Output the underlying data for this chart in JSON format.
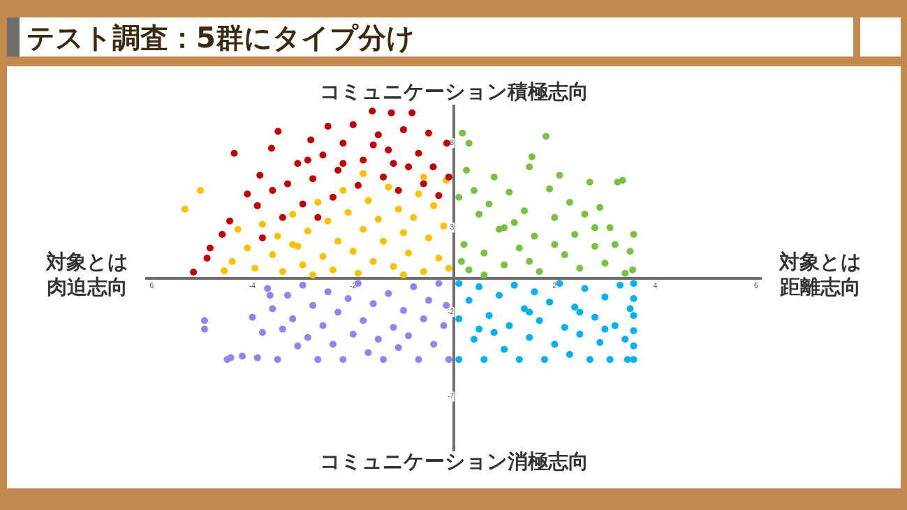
{
  "chart_data": {
    "type": "scatter",
    "title": "テスト調査：5群にタイプ分け",
    "annotations": [
      "コミュニケーション積極志向",
      "コミュニケーション消極志向",
      "対象とは肉迫志向",
      "対象とは距離志向"
    ],
    "xlim": [
      -6.1,
      6.1
    ],
    "ylim": [
      -10.2,
      10.2
    ],
    "xticks": [
      {
        "value": -6,
        "label": "6"
      },
      -4,
      -2,
      2,
      4,
      6
    ],
    "yticks": [
      8,
      3,
      -2,
      -7
    ],
    "grid": false,
    "legend": false,
    "marker": "circle",
    "series": [
      {
        "color": "#c00000",
        "x": [
          -5.17,
          -4.84,
          -4.6,
          -4.45,
          -4.36,
          -4.1,
          -3.9,
          -3.85,
          -3.62,
          -3.49,
          -3.4,
          -3.3,
          -3.1,
          -3.0,
          -2.84,
          -2.8,
          -2.6,
          -2.5,
          -2.4,
          -2.3,
          -2.2,
          -2.0,
          -1.9,
          -1.8,
          -1.62,
          -1.5,
          -1.4,
          -1.3,
          -1.24,
          -1.1,
          -1.0,
          -0.9,
          -0.83,
          -0.7,
          -0.6,
          -0.5,
          -0.41,
          -0.3,
          -0.14,
          -0.1,
          -3.6,
          -2.9,
          -2.2,
          -1.6,
          -1.2,
          -2.7,
          -3.8,
          -4.9
        ],
        "values": [
          0.37,
          1.8,
          2.6,
          3.4,
          7.4,
          5.0,
          4.3,
          6.1,
          7.7,
          8.7,
          3.6,
          5.6,
          6.8,
          4.4,
          8.2,
          5.9,
          7.3,
          9.0,
          4.8,
          6.4,
          8.0,
          9.1,
          5.5,
          7.0,
          9.9,
          8.5,
          6.0,
          7.6,
          9.8,
          5.2,
          8.8,
          6.6,
          9.8,
          7.4,
          5.6,
          8.6,
          6.6,
          4.9,
          8.0,
          6.0,
          5.2,
          7.0,
          6.8,
          7.9,
          6.8,
          3.6,
          2.4,
          1.2
        ]
      },
      {
        "color": "#ffc000",
        "x": [
          -5.34,
          -5.03,
          -4.56,
          -4.4,
          -4.29,
          -4.1,
          -3.95,
          -3.8,
          -3.6,
          -3.5,
          -3.4,
          -3.2,
          -3.1,
          -3.0,
          -2.9,
          -2.7,
          -2.6,
          -2.5,
          -2.4,
          -2.3,
          -2.2,
          -2.1,
          -2.0,
          -1.9,
          -1.8,
          -1.7,
          -1.6,
          -1.5,
          -1.4,
          -1.3,
          -1.2,
          -1.1,
          -1.0,
          -0.9,
          -0.8,
          -0.7,
          -0.6,
          -0.5,
          -0.4,
          -0.3,
          -0.2,
          -0.1,
          -0.15,
          -0.6,
          -1.8,
          -3.2,
          -2.8,
          -1.0
        ],
        "values": [
          4.1,
          5.2,
          0.45,
          1.0,
          2.9,
          1.8,
          0.6,
          3.2,
          1.4,
          2.5,
          0.4,
          3.8,
          1.9,
          0.8,
          2.8,
          4.5,
          1.3,
          3.4,
          0.5,
          2.2,
          5.2,
          3.9,
          1.6,
          0.3,
          2.9,
          4.6,
          1.0,
          3.5,
          2.2,
          5.4,
          0.7,
          4.1,
          2.7,
          1.5,
          3.6,
          5.0,
          0.4,
          2.4,
          4.3,
          1.2,
          3.1,
          0.6,
          5.8,
          6.0,
          6.2,
          2.0,
          0.2,
          0.2
        ]
      },
      {
        "color": "#7ac143",
        "x": [
          0.17,
          0.3,
          0.25,
          0.4,
          0.5,
          0.2,
          0.3,
          0.6,
          0.7,
          0.8,
          0.9,
          1.0,
          1.1,
          1.2,
          1.3,
          1.4,
          1.5,
          1.55,
          1.6,
          1.7,
          1.83,
          1.9,
          2.0,
          2.1,
          2.2,
          2.3,
          2.4,
          2.5,
          2.6,
          2.7,
          2.8,
          2.9,
          3.0,
          3.1,
          3.2,
          3.25,
          3.35,
          3.4,
          3.5,
          3.57,
          3.55,
          0.1,
          0.15,
          1.0,
          2.0,
          2.8,
          1.5,
          0.6
        ],
        "values": [
          8.6,
          8.0,
          6.4,
          5.2,
          3.8,
          2.0,
          0.5,
          1.5,
          4.4,
          6.0,
          2.9,
          0.8,
          5.1,
          3.3,
          1.8,
          4.0,
          6.6,
          7.2,
          2.5,
          0.4,
          8.4,
          5.3,
          3.6,
          6.1,
          1.4,
          4.5,
          2.6,
          0.6,
          3.8,
          5.7,
          1.9,
          4.2,
          0.9,
          3.0,
          2.0,
          5.7,
          5.8,
          0.3,
          1.6,
          2.6,
          0.5,
          4.8,
          1.0,
          3.0,
          2.0,
          3.0,
          1.0,
          0.2
        ]
      },
      {
        "color": "#9382f5",
        "x": [
          -4.95,
          -4.95,
          -4.43,
          -4.2,
          -4.0,
          -3.9,
          -3.8,
          -3.7,
          -3.6,
          -3.5,
          -3.4,
          -3.3,
          -3.2,
          -3.1,
          -3.0,
          -2.9,
          -2.8,
          -2.7,
          -2.6,
          -2.5,
          -2.4,
          -2.3,
          -2.2,
          -2.1,
          -2.0,
          -1.9,
          -1.8,
          -1.7,
          -1.6,
          -1.5,
          -1.4,
          -1.3,
          -1.2,
          -1.1,
          -1.0,
          -0.9,
          -0.8,
          -0.7,
          -0.6,
          -0.5,
          -0.4,
          -0.3,
          -0.2,
          -0.1,
          -0.15,
          -3.65,
          -4.5
        ],
        "values": [
          -2.5,
          -3.0,
          -4.7,
          -4.6,
          -2.3,
          -4.7,
          -3.2,
          -0.6,
          -1.8,
          -4.8,
          -3.0,
          -1.0,
          -2.4,
          -4.0,
          -0.4,
          -3.5,
          -1.6,
          -4.8,
          -2.8,
          -0.8,
          -3.9,
          -2.0,
          -4.8,
          -1.2,
          -3.3,
          -0.3,
          -2.5,
          -4.4,
          -1.5,
          -3.6,
          -4.8,
          -0.9,
          -2.9,
          -4.1,
          -1.9,
          -3.4,
          -0.5,
          -4.8,
          -2.4,
          -1.3,
          -3.9,
          -0.3,
          -2.8,
          -4.8,
          -1.6,
          -1.0,
          -4.8
        ]
      },
      {
        "color": "#00b0f0",
        "x": [
          0.1,
          0.1,
          0.1,
          0.3,
          0.4,
          0.5,
          0.6,
          0.7,
          0.8,
          0.9,
          1.0,
          1.1,
          1.2,
          1.3,
          1.4,
          1.5,
          1.6,
          1.7,
          1.8,
          1.9,
          2.0,
          2.1,
          2.2,
          2.3,
          2.4,
          2.5,
          2.6,
          2.7,
          2.8,
          2.9,
          3.0,
          3.1,
          3.2,
          3.3,
          3.4,
          3.5,
          3.57,
          3.57,
          3.57,
          3.57,
          3.57,
          3.57,
          3.45,
          0.5,
          1.5,
          2.5,
          3.0
        ],
        "values": [
          -0.3,
          -2.4,
          -4.8,
          -1.3,
          -3.6,
          -0.5,
          -4.8,
          -2.2,
          -3.2,
          -1.0,
          -4.2,
          -2.8,
          -0.4,
          -4.8,
          -1.8,
          -3.5,
          -0.8,
          -2.5,
          -4.8,
          -1.4,
          -3.9,
          -0.3,
          -2.9,
          -4.5,
          -1.7,
          -3.3,
          -0.6,
          -4.8,
          -2.3,
          -3.8,
          -1.1,
          -4.8,
          -2.8,
          -0.4,
          -3.6,
          -1.8,
          -0.3,
          -1.2,
          -2.2,
          -3.1,
          -4.0,
          -4.8,
          -4.8,
          -3.0,
          -2.0,
          -2.0,
          -3.0
        ]
      }
    ]
  }
}
